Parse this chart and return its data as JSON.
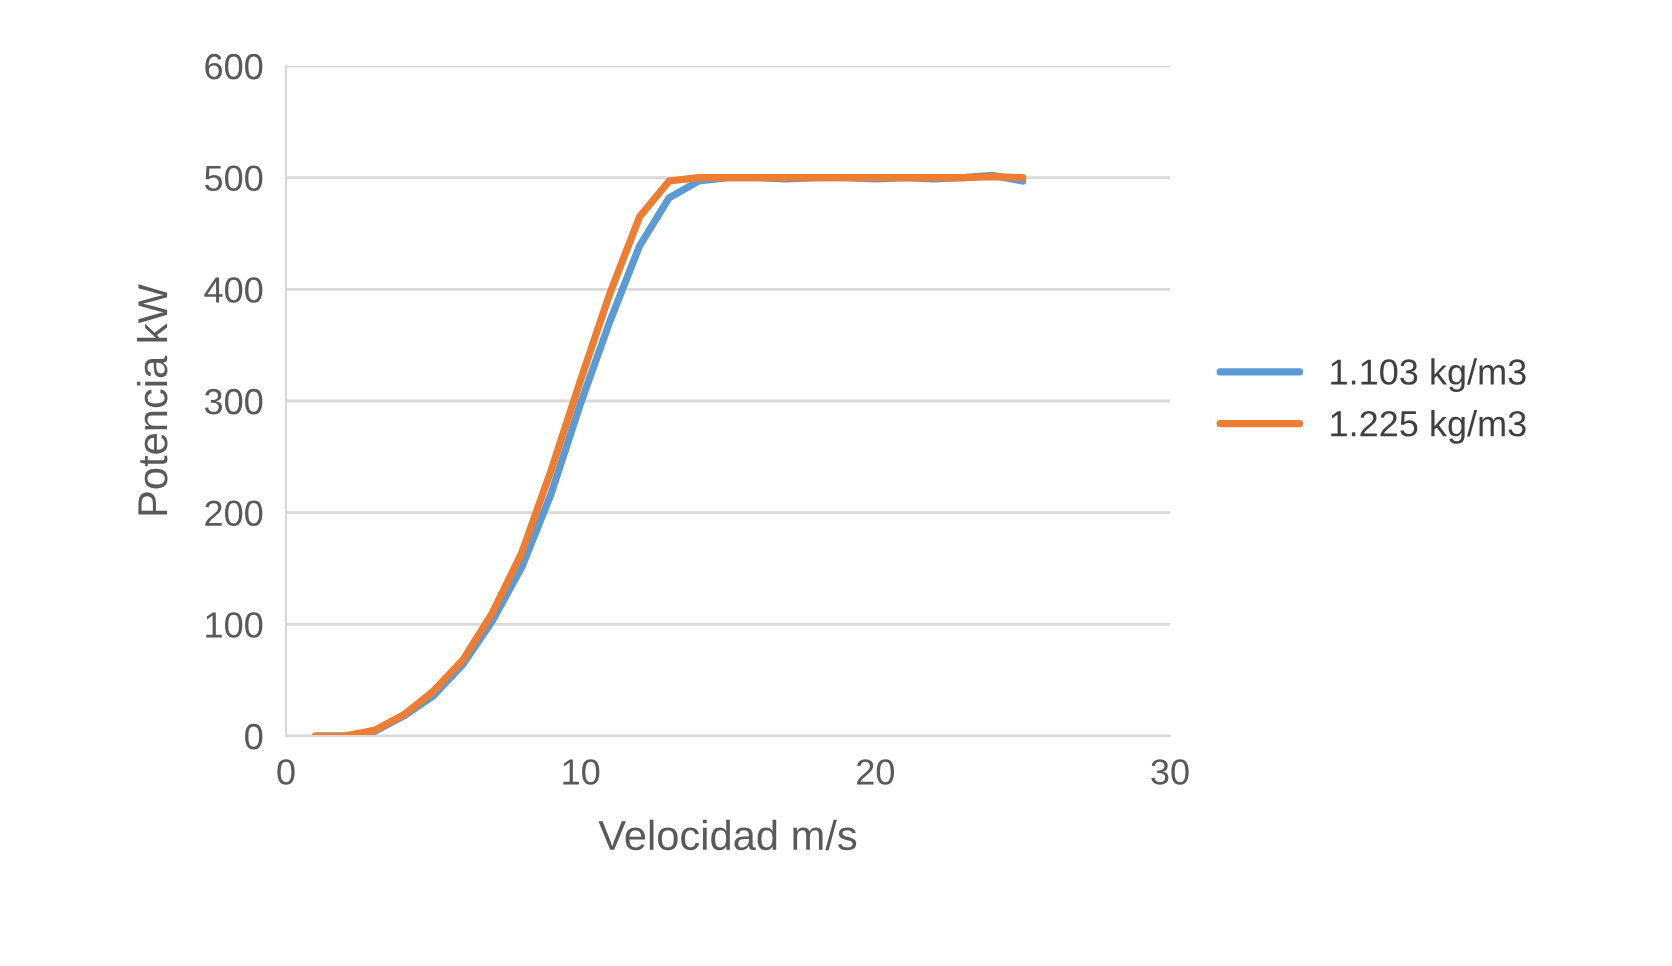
{
  "chart_data": {
    "type": "line",
    "xlabel": "Velocidad m/s",
    "ylabel": "Potencia kW",
    "x": [
      1,
      2,
      3,
      4,
      5,
      6,
      7,
      8,
      9,
      10,
      11,
      12,
      13,
      14,
      15,
      16,
      17,
      18,
      19,
      20,
      21,
      22,
      23,
      24,
      25
    ],
    "series": [
      {
        "name": "1.103 kg/m3",
        "color": "#5b9bd5",
        "values": [
          0,
          0,
          4,
          18,
          36,
          64,
          103,
          151,
          217,
          298,
          372,
          439,
          482,
          497,
          500,
          500,
          499,
          500,
          500,
          499,
          500,
          499,
          500,
          502,
          497
        ]
      },
      {
        "name": "1.225 kg/m3",
        "color": "#ed7d31",
        "values": [
          0,
          0,
          5,
          19,
          40,
          68,
          110,
          164,
          238,
          319,
          397,
          465,
          497,
          500,
          500,
          500,
          500,
          500,
          500,
          500,
          500,
          500,
          500,
          501,
          500
        ]
      }
    ],
    "xlim": [
      0,
      30
    ],
    "xticks": [
      0,
      10,
      20,
      30
    ],
    "ylim": [
      0,
      600
    ],
    "yticks": [
      0,
      100,
      200,
      300,
      400,
      500,
      600
    ],
    "grid": "y",
    "legend": "right"
  }
}
